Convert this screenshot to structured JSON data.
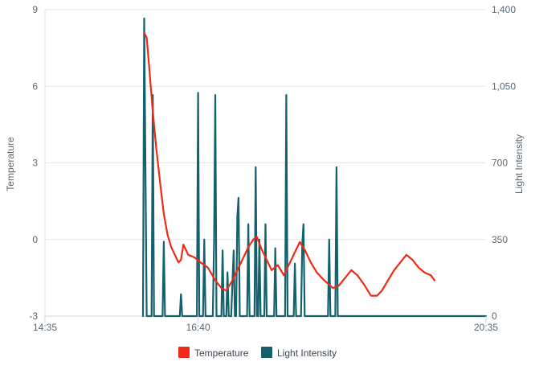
{
  "chart_data": {
    "type": "line",
    "x_ticks": [
      "14:35",
      "16:40",
      "20:35"
    ],
    "x_range": [
      "14:35",
      "20:35"
    ],
    "left_axis": {
      "label": "Temperature",
      "range": [
        -3,
        9
      ],
      "ticks": [
        "-3",
        "0",
        "3",
        "6",
        "9"
      ]
    },
    "right_axis": {
      "label": "Light Intensity",
      "range": [
        0,
        1400
      ],
      "ticks": [
        "0",
        "350",
        "700",
        "1,050",
        "1,400"
      ]
    },
    "grid": "horizontal",
    "legend_position": "bottom-center",
    "series": [
      {
        "name": "Temperature",
        "axis": "left",
        "color": "#f12a17",
        "points": [
          [
            "15:56",
            8.1
          ],
          [
            "15:58",
            7.9
          ],
          [
            "16:00",
            6.8
          ],
          [
            "16:03",
            5.0
          ],
          [
            "16:06",
            3.5
          ],
          [
            "16:09",
            2.2
          ],
          [
            "16:12",
            1.0
          ],
          [
            "16:15",
            0.2
          ],
          [
            "16:18",
            -0.3
          ],
          [
            "16:21",
            -0.6
          ],
          [
            "16:24",
            -0.9
          ],
          [
            "16:26",
            -0.8
          ],
          [
            "16:28",
            -0.2
          ],
          [
            "16:32",
            -0.6
          ],
          [
            "16:37",
            -0.7
          ],
          [
            "16:42",
            -0.9
          ],
          [
            "16:48",
            -1.1
          ],
          [
            "16:54",
            -1.6
          ],
          [
            "16:59",
            -1.9
          ],
          [
            "17:03",
            -2.0
          ],
          [
            "17:08",
            -1.6
          ],
          [
            "17:12",
            -1.2
          ],
          [
            "17:17",
            -0.7
          ],
          [
            "17:21",
            -0.3
          ],
          [
            "17:25",
            0.0
          ],
          [
            "17:28",
            0.1
          ],
          [
            "17:32",
            -0.4
          ],
          [
            "17:37",
            -0.9
          ],
          [
            "17:40",
            -1.2
          ],
          [
            "17:45",
            -1.0
          ],
          [
            "17:50",
            -1.4
          ],
          [
            "17:55",
            -0.9
          ],
          [
            "18:00",
            -0.4
          ],
          [
            "18:03",
            -0.1
          ],
          [
            "18:07",
            -0.4
          ],
          [
            "18:12",
            -0.9
          ],
          [
            "18:17",
            -1.3
          ],
          [
            "18:23",
            -1.6
          ],
          [
            "18:30",
            -1.9
          ],
          [
            "18:35",
            -1.8
          ],
          [
            "18:40",
            -1.5
          ],
          [
            "18:45",
            -1.2
          ],
          [
            "18:50",
            -1.4
          ],
          [
            "18:56",
            -1.8
          ],
          [
            "19:01",
            -2.2
          ],
          [
            "19:06",
            -2.2
          ],
          [
            "19:10",
            -2.0
          ],
          [
            "19:15",
            -1.6
          ],
          [
            "19:20",
            -1.2
          ],
          [
            "19:25",
            -0.9
          ],
          [
            "19:30",
            -0.6
          ],
          [
            "19:35",
            -0.8
          ],
          [
            "19:40",
            -1.1
          ],
          [
            "19:45",
            -1.3
          ],
          [
            "19:50",
            -1.4
          ],
          [
            "19:53",
            -1.6
          ]
        ]
      },
      {
        "name": "Light Intensity",
        "axis": "right",
        "color": "#14616d",
        "points": [
          [
            "15:55",
            0
          ],
          [
            "15:56",
            1360
          ],
          [
            "15:58",
            0
          ],
          [
            "16:02",
            0
          ],
          [
            "16:03",
            1010
          ],
          [
            "16:04",
            0
          ],
          [
            "16:11",
            0
          ],
          [
            "16:12",
            340
          ],
          [
            "16:13",
            0
          ],
          [
            "16:25",
            0
          ],
          [
            "16:26",
            100
          ],
          [
            "16:27",
            0
          ],
          [
            "16:39",
            0
          ],
          [
            "16:40",
            1020
          ],
          [
            "16:41",
            0
          ],
          [
            "16:44",
            0
          ],
          [
            "16:45",
            350
          ],
          [
            "16:46",
            0
          ],
          [
            "16:52",
            0
          ],
          [
            "16:53",
            340
          ],
          [
            "16:54",
            1010
          ],
          [
            "16:55",
            0
          ],
          [
            "16:59",
            0
          ],
          [
            "17:00",
            300
          ],
          [
            "17:01",
            0
          ],
          [
            "17:03",
            0
          ],
          [
            "17:04",
            200
          ],
          [
            "17:05",
            0
          ],
          [
            "17:07",
            0
          ],
          [
            "17:08",
            150
          ],
          [
            "17:09",
            300
          ],
          [
            "17:10",
            0
          ],
          [
            "17:11",
            0
          ],
          [
            "17:12",
            450
          ],
          [
            "17:13",
            540
          ],
          [
            "17:14",
            0
          ],
          [
            "17:20",
            0
          ],
          [
            "17:21",
            420
          ],
          [
            "17:22",
            0
          ],
          [
            "17:26",
            0
          ],
          [
            "17:27",
            680
          ],
          [
            "17:28",
            0
          ],
          [
            "17:29",
            0
          ],
          [
            "17:30",
            350
          ],
          [
            "17:31",
            0
          ],
          [
            "17:34",
            0
          ],
          [
            "17:35",
            420
          ],
          [
            "17:36",
            0
          ],
          [
            "17:42",
            0
          ],
          [
            "17:43",
            310
          ],
          [
            "17:44",
            0
          ],
          [
            "17:51",
            0
          ],
          [
            "17:52",
            1010
          ],
          [
            "17:53",
            0
          ],
          [
            "17:58",
            0
          ],
          [
            "17:59",
            240
          ],
          [
            "18:00",
            0
          ],
          [
            "18:04",
            0
          ],
          [
            "18:05",
            330
          ],
          [
            "18:06",
            420
          ],
          [
            "18:07",
            0
          ],
          [
            "18:26",
            0
          ],
          [
            "18:27",
            350
          ],
          [
            "18:28",
            0
          ],
          [
            "18:32",
            0
          ],
          [
            "18:33",
            680
          ],
          [
            "18:34",
            0
          ],
          [
            "20:35",
            0
          ]
        ]
      }
    ]
  }
}
